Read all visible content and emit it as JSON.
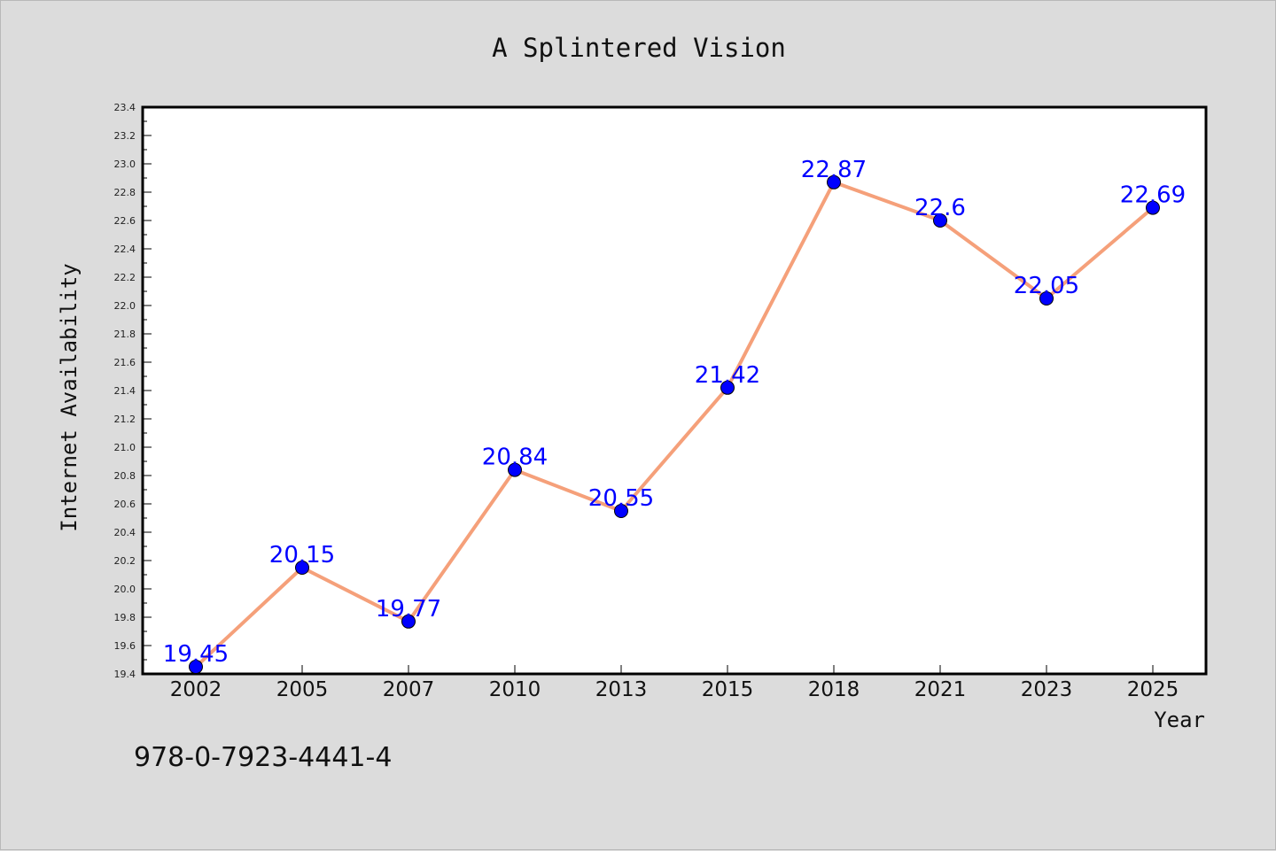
{
  "chart_data": {
    "type": "line",
    "title": "A Splintered Vision",
    "xlabel": "Year",
    "ylabel": "Internet Availability",
    "categories": [
      "2002",
      "2005",
      "2007",
      "2010",
      "2013",
      "2015",
      "2018",
      "2021",
      "2023",
      "2025"
    ],
    "series": [
      {
        "values": [
          19.45,
          20.15,
          19.77,
          20.84,
          20.55,
          21.42,
          22.87,
          22.6,
          22.05,
          22.69
        ],
        "data_labels": [
          "19.45",
          "20.15",
          "19.77",
          "20.84",
          "20.55",
          "21.42",
          "22.87",
          "22.6",
          "22.05",
          "22.69"
        ],
        "line_color": "#f5a07a",
        "marker_color": "#0000ff"
      }
    ],
    "ylim": [
      19.4,
      23.4
    ],
    "y_ticks": [
      "19.4",
      "19.6",
      "19.8",
      "20.0",
      "20.2",
      "20.4",
      "20.6",
      "20.8",
      "21.0",
      "21.2",
      "21.4",
      "21.6",
      "21.8",
      "22.0",
      "22.2",
      "22.4",
      "22.6",
      "22.8",
      "23.0",
      "23.2",
      "23.4"
    ],
    "grid": false,
    "legend": "none"
  },
  "footer": {
    "isbn": "978-0-7923-4441-4"
  },
  "colors": {
    "background": "#dcdcdc",
    "plot_background": "#ffffff",
    "data_label": "#0000ff"
  }
}
